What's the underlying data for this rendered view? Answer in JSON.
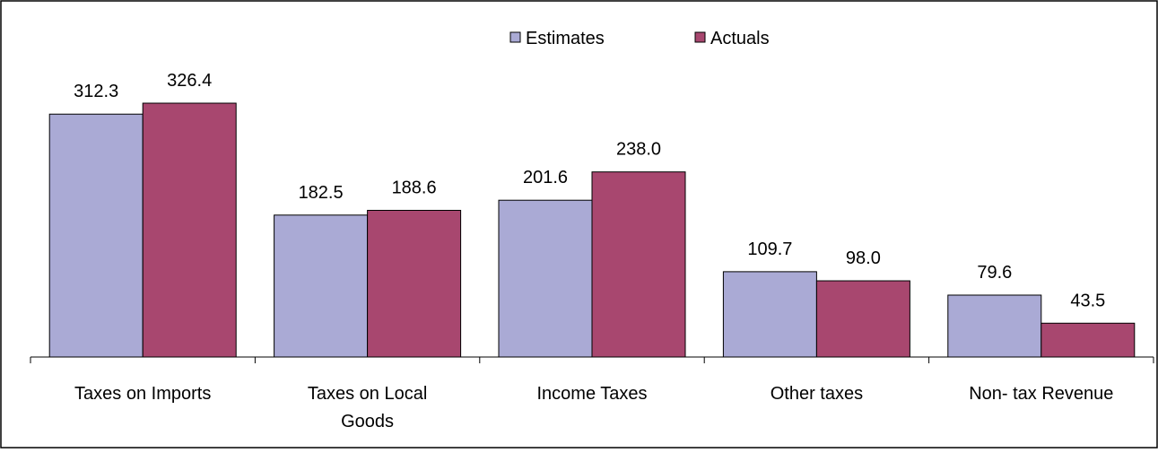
{
  "chart_data": {
    "type": "bar",
    "categories": [
      "Taxes on Imports",
      "Taxes on Local Goods",
      "Income Taxes",
      "Other taxes",
      "Non- tax Revenue"
    ],
    "category_lines": [
      [
        "Taxes on Imports"
      ],
      [
        "Taxes on Local",
        "Goods"
      ],
      [
        "Income Taxes"
      ],
      [
        "Other taxes"
      ],
      [
        "Non- tax Revenue"
      ]
    ],
    "series": [
      {
        "name": "Estimates",
        "color": "#aaaad5",
        "values": [
          312.3,
          182.5,
          201.6,
          109.7,
          79.6
        ]
      },
      {
        "name": "Actuals",
        "color": "#a8476f",
        "values": [
          326.4,
          188.6,
          238.0,
          98.0,
          43.5
        ]
      }
    ],
    "value_labels": [
      [
        "312.3",
        "182.5",
        "201.6",
        "109.7",
        "79.6"
      ],
      [
        "326.4",
        "188.6",
        "238.0",
        "98.0",
        "43.5"
      ]
    ],
    "title": "",
    "xlabel": "",
    "ylabel": "",
    "ylim": [
      0,
      340
    ],
    "grid": false,
    "legend": {
      "position": "top-right",
      "items": [
        "Estimates",
        "Actuals"
      ]
    }
  }
}
